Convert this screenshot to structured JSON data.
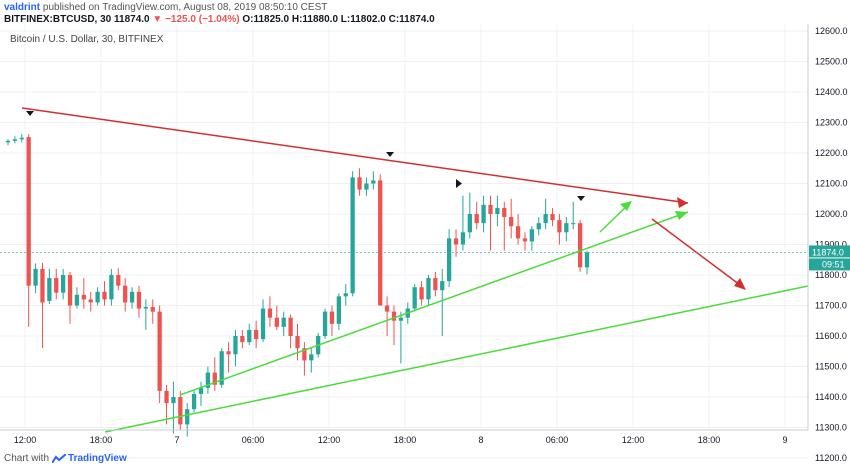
{
  "header": {
    "user": "valdrint",
    "published": " published on TradingView.com, August 08, 2019 08:50:10 CEST",
    "symbol": "BITFINEX:BTCUSD, 30",
    "last": "11874.0",
    "arrow": "▼",
    "change": "−125.0 (−1.04%)",
    "ohlc": "O:11825.0 H:11880.0 L:11802.0 C:11874.0"
  },
  "footer": {
    "prefix": "Chart with",
    "brand": "TradingView"
  },
  "colors": {
    "up": "#26a69a",
    "down": "#ef5350",
    "resistance": "#d32f2f",
    "support": "#4cdc3c",
    "grid": "#eef0f3"
  },
  "chart_data": {
    "type": "candlestick",
    "title": "Bitcoin / U.S. Dollar, 30, BITFINEX",
    "ylim": [
      11150,
      12650
    ],
    "y_ticks": [
      "12600.0",
      "12500.0",
      "12400.0",
      "12300.0",
      "12200.0",
      "12100.0",
      "12000.0",
      "11900.0",
      "11800.0",
      "11700.0",
      "11600.0",
      "11500.0",
      "11400.0",
      "11300.0",
      "11200.0"
    ],
    "x_ticks": [
      "12:00",
      "18:00",
      "7",
      "06:00",
      "12:00",
      "18:00",
      "8",
      "06:00",
      "12:00",
      "18:00",
      "9"
    ],
    "price_label": "11874.0",
    "countdown_label": "09:51",
    "candles": [
      [
        12235,
        12245,
        12225,
        12240
      ],
      [
        12240,
        12255,
        12232,
        12245
      ],
      [
        12245,
        12262,
        12235,
        12250
      ],
      [
        12252,
        12262,
        11630,
        11765
      ],
      [
        11765,
        11838,
        11740,
        11820
      ],
      [
        11820,
        11840,
        11560,
        11710
      ],
      [
        11715,
        11820,
        11705,
        11790
      ],
      [
        11790,
        11820,
        11720,
        11742
      ],
      [
        11742,
        11820,
        11720,
        11800
      ],
      [
        11800,
        11810,
        11640,
        11700
      ],
      [
        11700,
        11760,
        11690,
        11735
      ],
      [
        11735,
        11790,
        11690,
        11720
      ],
      [
        11720,
        11745,
        11680,
        11710
      ],
      [
        11710,
        11760,
        11700,
        11745
      ],
      [
        11745,
        11780,
        11700,
        11720
      ],
      [
        11720,
        11820,
        11700,
        11800
      ],
      [
        11800,
        11822,
        11750,
        11765
      ],
      [
        11765,
        11790,
        11680,
        11710
      ],
      [
        11710,
        11760,
        11690,
        11745
      ],
      [
        11745,
        11765,
        11660,
        11690
      ],
      [
        11690,
        11720,
        11620,
        11695
      ],
      [
        11695,
        11720,
        11640,
        11680
      ],
      [
        11680,
        11700,
        11380,
        11420
      ],
      [
        11420,
        11440,
        11310,
        11380
      ],
      [
        11380,
        11450,
        11280,
        11400
      ],
      [
        11400,
        11420,
        11290,
        11310
      ],
      [
        11310,
        11380,
        11270,
        11360
      ],
      [
        11360,
        11420,
        11350,
        11410
      ],
      [
        11410,
        11450,
        11370,
        11430
      ],
      [
        11430,
        11500,
        11410,
        11480
      ],
      [
        11480,
        11530,
        11420,
        11440
      ],
      [
        11440,
        11560,
        11430,
        11550
      ],
      [
        11550,
        11580,
        11480,
        11540
      ],
      [
        11540,
        11620,
        11500,
        11600
      ],
      [
        11600,
        11620,
        11560,
        11580
      ],
      [
        11580,
        11640,
        11570,
        11620
      ],
      [
        11620,
        11650,
        11560,
        11590
      ],
      [
        11590,
        11720,
        11580,
        11690
      ],
      [
        11690,
        11730,
        11630,
        11660
      ],
      [
        11660,
        11700,
        11620,
        11630
      ],
      [
        11630,
        11680,
        11600,
        11660
      ],
      [
        11660,
        11670,
        11560,
        11600
      ],
      [
        11600,
        11640,
        11520,
        11560
      ],
      [
        11560,
        11580,
        11470,
        11520
      ],
      [
        11520,
        11560,
        11480,
        11540
      ],
      [
        11540,
        11610,
        11530,
        11600
      ],
      [
        11600,
        11690,
        11590,
        11680
      ],
      [
        11680,
        11700,
        11600,
        11640
      ],
      [
        11640,
        11740,
        11620,
        11730
      ],
      [
        11730,
        11770,
        11700,
        11740
      ],
      [
        11740,
        12140,
        11730,
        12120
      ],
      [
        12120,
        12150,
        12060,
        12080
      ],
      [
        12080,
        12120,
        12060,
        12100
      ],
      [
        12100,
        12140,
        12080,
        12110
      ],
      [
        12110,
        12130,
        11700,
        11700
      ],
      [
        11700,
        11730,
        11600,
        11680
      ],
      [
        11680,
        11700,
        11570,
        11650
      ],
      [
        11650,
        11680,
        11510,
        11660
      ],
      [
        11660,
        11710,
        11640,
        11690
      ],
      [
        11690,
        11770,
        11680,
        11760
      ],
      [
        11760,
        11780,
        11700,
        11720
      ],
      [
        11720,
        11800,
        11700,
        11790
      ],
      [
        11790,
        11810,
        11730,
        11750
      ],
      [
        11750,
        11820,
        11600,
        11780
      ],
      [
        11780,
        11950,
        11760,
        11920
      ],
      [
        11920,
        11950,
        11860,
        11900
      ],
      [
        11900,
        12060,
        11880,
        11940
      ],
      [
        11940,
        12070,
        11920,
        12000
      ],
      [
        12000,
        12040,
        11950,
        11970
      ],
      [
        11970,
        12060,
        11940,
        12030
      ],
      [
        12030,
        12060,
        11880,
        12000
      ],
      [
        12000,
        12060,
        11960,
        12020
      ],
      [
        12020,
        12040,
        11880,
        11990
      ],
      [
        11990,
        12050,
        11920,
        11960
      ],
      [
        11960,
        12000,
        11900,
        11920
      ],
      [
        11920,
        11940,
        11880,
        11910
      ],
      [
        11910,
        11960,
        11880,
        11950
      ],
      [
        11950,
        11990,
        11930,
        11970
      ],
      [
        11970,
        12050,
        11950,
        12000
      ],
      [
        12000,
        12020,
        11960,
        11980
      ],
      [
        11980,
        12000,
        11900,
        11940
      ],
      [
        11940,
        11990,
        11910,
        11970
      ],
      [
        11970,
        12040,
        11950,
        11970
      ],
      [
        11970,
        11980,
        11810,
        11825
      ],
      [
        11825,
        11880,
        11802,
        11874
      ]
    ]
  }
}
